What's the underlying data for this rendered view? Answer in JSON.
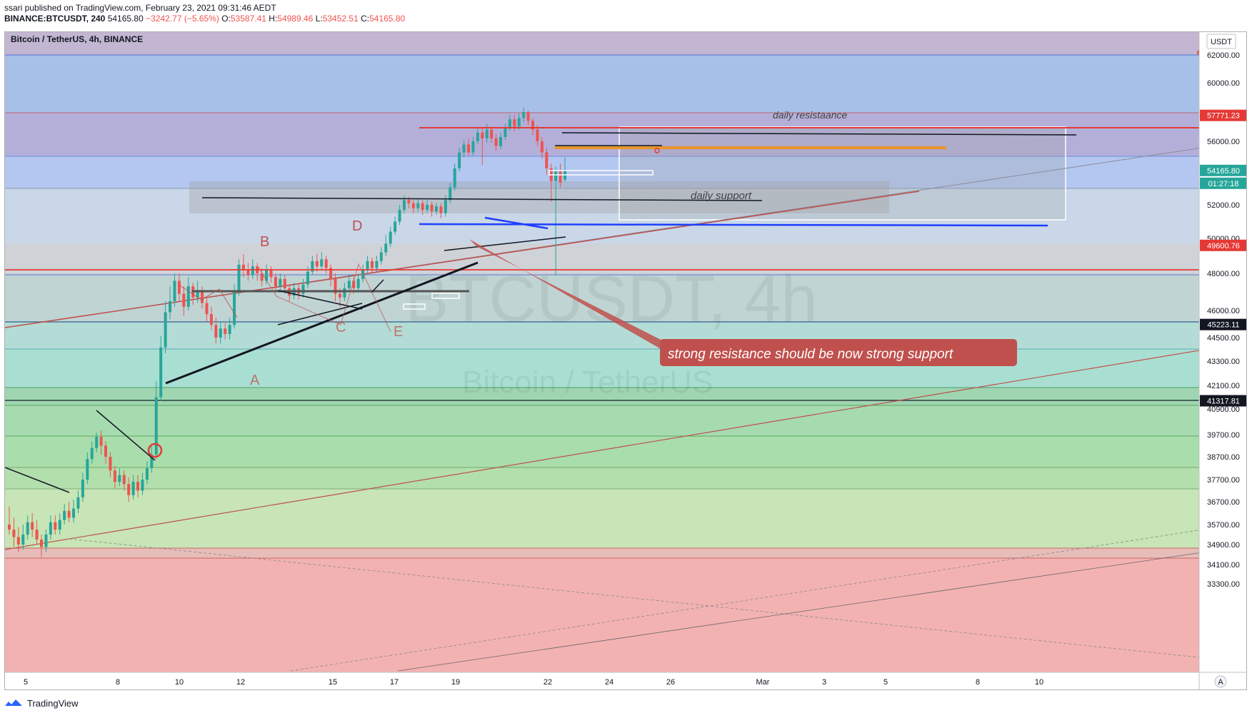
{
  "header": {
    "published": "ssari published on TradingView.com, February 23, 2021 09:31:46 AEDT",
    "symbol": "BINANCE:BTCUSDT, 240",
    "price": "54165.80",
    "change": "−3242.77 (−5.65%)",
    "open_label": "O:",
    "open": "53587.41",
    "high_label": "H:",
    "high": "54989.46",
    "low_label": "L:",
    "low": "53452.51",
    "close_label": "C:",
    "close": "54165.80"
  },
  "legend_title": "Bitcoin / TetherUS, 4h, BINANCE",
  "currency_badge": "USDT",
  "watermark": {
    "line1": "BTCUSDT, 4h",
    "line2": "Bitcoin / TetherUS"
  },
  "footer": {
    "brand": "TradingView"
  },
  "colors": {
    "up": "#26a69a",
    "down": "#ef5350",
    "resistance": "#e53935",
    "support": "#1e40ff",
    "orange": "#e8952a"
  },
  "chart_data": {
    "type": "candlestick",
    "y_axis": {
      "labels": [
        "62000.00",
        "60000.00",
        "56000.00",
        "52000.00",
        "50000.00",
        "48000.00",
        "46000.00",
        "44500.00",
        "43300.00",
        "42100.00",
        "40900.00",
        "39700.00",
        "38700.00",
        "37700.00",
        "36700.00",
        "35700.00",
        "34900.00",
        "34100.00",
        "33300.00"
      ],
      "price_tags": [
        {
          "value": "57771.23",
          "color": "#e53935"
        },
        {
          "value": "54165.80",
          "color": "#26a69a"
        },
        {
          "value": "01:27:18",
          "color": "#26a69a"
        },
        {
          "value": "49600.76",
          "color": "#e53935"
        },
        {
          "value": "45223.11",
          "color": "#131722"
        },
        {
          "value": "41317.81",
          "color": "#131722"
        }
      ]
    },
    "x_axis": {
      "labels": [
        "5",
        "8",
        "10",
        "12",
        "15",
        "17",
        "19",
        "22",
        "24",
        "26",
        "Mar",
        "3",
        "5",
        "8",
        "10"
      ]
    },
    "annotations": {
      "daily_resistance": "daily resistaance",
      "daily_support": "daily support",
      "callout": "strong resistance should be now strong support",
      "wave_labels": [
        "A",
        "B",
        "C",
        "D",
        "E"
      ]
    },
    "axis_button": "A",
    "candles": [
      [
        35700,
        35500,
        36500,
        35300
      ],
      [
        35500,
        35200,
        36000,
        34800
      ],
      [
        35200,
        34900,
        35600,
        34600
      ],
      [
        34900,
        35300,
        35700,
        34700
      ],
      [
        35300,
        35800,
        36100,
        35100
      ],
      [
        35800,
        35500,
        36200,
        35200
      ],
      [
        35500,
        35100,
        35900,
        34900
      ],
      [
        35100,
        34800,
        35300,
        34400
      ],
      [
        34800,
        35300,
        35500,
        34600
      ],
      [
        35300,
        35800,
        36100,
        35100
      ],
      [
        35800,
        35500,
        36100,
        35300
      ],
      [
        35500,
        35900,
        36200,
        35300
      ],
      [
        35900,
        36300,
        36600,
        35700
      ],
      [
        36300,
        36000,
        36700,
        35800
      ],
      [
        36000,
        36400,
        36800,
        35800
      ],
      [
        36400,
        36900,
        37200,
        36200
      ],
      [
        36900,
        37700,
        38000,
        36700
      ],
      [
        37700,
        38600,
        38900,
        37500
      ],
      [
        38600,
        39100,
        39400,
        38400
      ],
      [
        39100,
        39600,
        39800,
        38900
      ],
      [
        39600,
        39200,
        39900,
        38800
      ],
      [
        39200,
        38700,
        39400,
        38400
      ],
      [
        38700,
        38100,
        38900,
        37800
      ],
      [
        38100,
        37600,
        38300,
        37300
      ],
      [
        37600,
        37900,
        38200,
        37400
      ],
      [
        37900,
        37500,
        38100,
        37200
      ],
      [
        37500,
        37000,
        37800,
        36700
      ],
      [
        37000,
        37600,
        37900,
        36800
      ],
      [
        37600,
        37200,
        37900,
        36900
      ],
      [
        37200,
        37700,
        38000,
        37000
      ],
      [
        37700,
        38200,
        38500,
        37500
      ],
      [
        38200,
        38800,
        39300,
        38000
      ],
      [
        38800,
        41500,
        42300,
        38600
      ],
      [
        41500,
        44000,
        44600,
        41300
      ],
      [
        44000,
        45900,
        46500,
        43700
      ],
      [
        45900,
        46500,
        47300,
        45500
      ],
      [
        46500,
        47600,
        48000,
        46200
      ],
      [
        47600,
        46900,
        48000,
        46500
      ],
      [
        46900,
        46200,
        47300,
        45700
      ],
      [
        46200,
        47300,
        47800,
        46000
      ],
      [
        47300,
        46700,
        47500,
        46300
      ],
      [
        46700,
        47100,
        47600,
        46400
      ],
      [
        47100,
        46400,
        47300,
        46100
      ],
      [
        46400,
        45800,
        46700,
        45400
      ],
      [
        45800,
        45200,
        46200,
        44900
      ],
      [
        45200,
        44500,
        45600,
        44200
      ],
      [
        44500,
        45000,
        45400,
        44200
      ],
      [
        45000,
        44700,
        45300,
        44400
      ],
      [
        44700,
        45200,
        45600,
        44400
      ],
      [
        45200,
        47000,
        47400,
        45000
      ],
      [
        47000,
        48500,
        48800,
        46800
      ],
      [
        48500,
        48200,
        49100,
        47800
      ],
      [
        48200,
        47900,
        48600,
        47600
      ],
      [
        47900,
        48400,
        48800,
        47700
      ],
      [
        48400,
        48000,
        48600,
        47600
      ],
      [
        48000,
        47600,
        48300,
        47300
      ],
      [
        47600,
        48200,
        48500,
        47400
      ],
      [
        48200,
        47800,
        48400,
        47500
      ],
      [
        47800,
        47300,
        48000,
        47000
      ],
      [
        47300,
        47700,
        48000,
        47100
      ],
      [
        47700,
        47200,
        47900,
        46900
      ],
      [
        47200,
        46800,
        47400,
        46500
      ],
      [
        46800,
        47200,
        47500,
        46600
      ],
      [
        47200,
        46900,
        47400,
        46600
      ],
      [
        46900,
        47400,
        47700,
        46700
      ],
      [
        47400,
        48100,
        48400,
        47200
      ],
      [
        48100,
        48700,
        49000,
        47900
      ],
      [
        48700,
        48400,
        49100,
        48100
      ],
      [
        48400,
        48800,
        49200,
        48200
      ],
      [
        48800,
        48300,
        49000,
        48000
      ],
      [
        48300,
        47700,
        48500,
        47300
      ],
      [
        47700,
        46900,
        48000,
        46500
      ],
      [
        46900,
        46700,
        47200,
        46200
      ],
      [
        46700,
        47200,
        47500,
        46500
      ],
      [
        47200,
        47600,
        47900,
        47000
      ],
      [
        47600,
        47200,
        47800,
        46900
      ],
      [
        47200,
        47700,
        48000,
        47000
      ],
      [
        47700,
        48200,
        48500,
        47500
      ],
      [
        48200,
        48700,
        49000,
        48000
      ],
      [
        48700,
        48300,
        48900,
        48000
      ],
      [
        48300,
        48700,
        49000,
        48100
      ],
      [
        48700,
        49200,
        49500,
        48500
      ],
      [
        49200,
        49700,
        50200,
        49000
      ],
      [
        49700,
        50400,
        50700,
        49500
      ],
      [
        50400,
        51000,
        51300,
        50200
      ],
      [
        51000,
        51700,
        52000,
        50800
      ],
      [
        51700,
        52300,
        52600,
        51500
      ],
      [
        52300,
        52100,
        52500,
        51800
      ],
      [
        52100,
        51800,
        52300,
        51500
      ],
      [
        51800,
        52100,
        52400,
        51600
      ],
      [
        52100,
        51700,
        52300,
        51400
      ],
      [
        51700,
        52000,
        52300,
        51500
      ],
      [
        52000,
        51600,
        52200,
        51300
      ],
      [
        51600,
        51900,
        52100,
        51400
      ],
      [
        51900,
        51500,
        52100,
        51200
      ],
      [
        51500,
        52300,
        52600,
        51300
      ],
      [
        52300,
        53100,
        53400,
        52100
      ],
      [
        53100,
        54300,
        54600,
        52900
      ],
      [
        54300,
        55300,
        55600,
        54100
      ],
      [
        55300,
        55800,
        56100,
        55000
      ],
      [
        55800,
        55300,
        56200,
        55100
      ],
      [
        55300,
        56000,
        56300,
        55100
      ],
      [
        56000,
        56600,
        56900,
        55800
      ],
      [
        56600,
        56200,
        56900,
        54500
      ],
      [
        56200,
        56800,
        57200,
        55900
      ],
      [
        56800,
        56200,
        57000,
        55900
      ],
      [
        56200,
        55700,
        56500,
        55400
      ],
      [
        55700,
        56300,
        56600,
        55500
      ],
      [
        56300,
        56900,
        57200,
        56100
      ],
      [
        56900,
        57500,
        57800,
        56700
      ],
      [
        57500,
        57000,
        57800,
        56700
      ],
      [
        57000,
        57600,
        57900,
        56800
      ],
      [
        57600,
        58000,
        58300,
        57300
      ],
      [
        58000,
        57400,
        58100,
        57100
      ],
      [
        57400,
        56800,
        57600,
        56400
      ],
      [
        56800,
        56000,
        57100,
        55700
      ],
      [
        56000,
        55300,
        56300,
        54900
      ],
      [
        55300,
        54300,
        55600,
        53900
      ],
      [
        54300,
        53500,
        54600,
        52200
      ],
      [
        53500,
        54100,
        54400,
        47900
      ],
      [
        54100,
        53400,
        54600,
        53100
      ],
      [
        53587,
        54166,
        54989,
        53452
      ]
    ]
  }
}
